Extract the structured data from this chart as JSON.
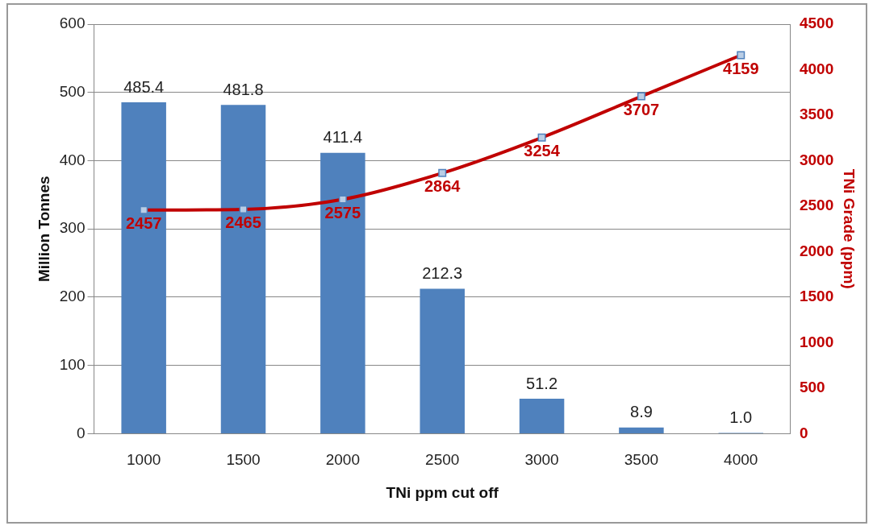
{
  "chart_data": {
    "type": "bar",
    "xlabel": "TNi ppm cut off",
    "ylabel": "Million Tonnes",
    "y2label": "TNi Grade (ppm)",
    "categories": [
      "1000",
      "1500",
      "2000",
      "2500",
      "3000",
      "3500",
      "4000"
    ],
    "series": [
      {
        "color": "#4f81bd",
        "values": [
          485.4,
          481.8,
          411.4,
          212.3,
          51.2,
          8.9,
          1.0
        ],
        "value_labels": [
          "485.4",
          "481.8",
          "411.4",
          "212.3",
          "51.2",
          "8.9",
          "1.0"
        ]
      },
      {
        "type": "line",
        "axis": "y2",
        "color": "#c00000",
        "marker": "square",
        "values": [
          2457,
          2465,
          2575,
          2864,
          3254,
          3707,
          4159
        ],
        "value_labels": [
          "2457",
          "2465",
          "2575",
          "2864",
          "3254",
          "3707",
          "4159"
        ]
      }
    ],
    "ylim": [
      0,
      600
    ],
    "yticks": [
      0,
      100,
      200,
      300,
      400,
      500,
      600
    ],
    "y2lim": [
      0,
      4500
    ],
    "y2ticks": [
      0,
      500,
      1000,
      1500,
      2000,
      2500,
      3000,
      3500,
      4000,
      4500
    ],
    "grid": "y",
    "legend": false
  }
}
